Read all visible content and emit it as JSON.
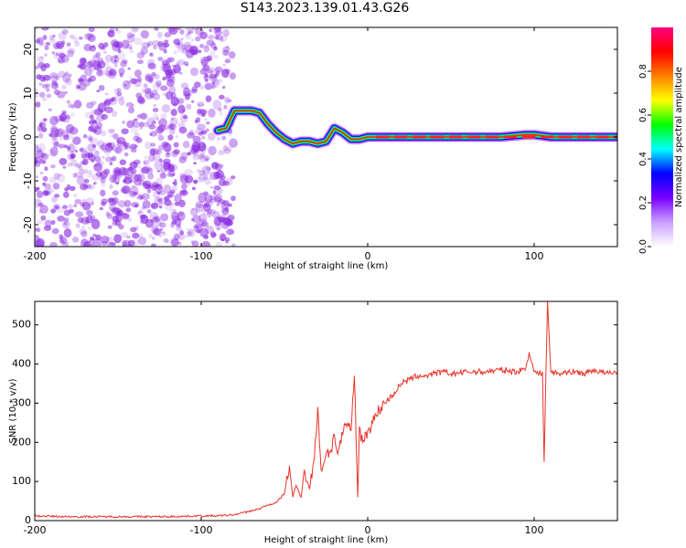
{
  "title": "S143.2023.139.01.43.G26",
  "chart_data": [
    {
      "type": "heatmap",
      "xlabel": "Height of straight line (km)",
      "ylabel": "Frequency (Hz)",
      "xlim": [
        -200,
        150
      ],
      "ylim": [
        -25,
        25
      ],
      "xticks": [
        -200,
        -100,
        0,
        100
      ],
      "yticks": [
        -20,
        -10,
        0,
        10,
        20
      ],
      "colorbar": {
        "label": "Normalized spectral amplitude",
        "range": [
          0,
          1
        ],
        "ticks": [
          0.0,
          0.2,
          0.4,
          0.6,
          0.8
        ],
        "tick_labels": [
          "0.0",
          "0.2",
          "0.4",
          "0.6",
          "0.8"
        ],
        "colors": [
          "#ffffff",
          "#c9a0ff",
          "#7a00ff",
          "#0000ff",
          "#00ffff",
          "#00ff00",
          "#ffff00",
          "#ff8000",
          "#ff0000",
          "#ff007f"
        ]
      },
      "noise_region": {
        "x_range": [
          -200,
          -85
        ],
        "color": "#8a2be2"
      },
      "ridge": [
        {
          "x": -90,
          "y": 1.5
        },
        {
          "x": -85,
          "y": 2
        },
        {
          "x": -80,
          "y": 6
        },
        {
          "x": -75,
          "y": 6
        },
        {
          "x": -70,
          "y": 6
        },
        {
          "x": -65,
          "y": 5.5
        },
        {
          "x": -60,
          "y": 3
        },
        {
          "x": -55,
          "y": 1
        },
        {
          "x": -50,
          "y": -0.5
        },
        {
          "x": -45,
          "y": -1.5
        },
        {
          "x": -40,
          "y": -1
        },
        {
          "x": -35,
          "y": -1
        },
        {
          "x": -30,
          "y": -1.5
        },
        {
          "x": -25,
          "y": -1
        },
        {
          "x": -20,
          "y": 2
        },
        {
          "x": -15,
          "y": 1
        },
        {
          "x": -10,
          "y": -0.5
        },
        {
          "x": -5,
          "y": -0.5
        },
        {
          "x": 0,
          "y": 0
        },
        {
          "x": 10,
          "y": 0
        },
        {
          "x": 30,
          "y": 0
        },
        {
          "x": 60,
          "y": 0
        },
        {
          "x": 80,
          "y": 0
        },
        {
          "x": 95,
          "y": 0.5
        },
        {
          "x": 100,
          "y": 0.5
        },
        {
          "x": 110,
          "y": 0
        },
        {
          "x": 150,
          "y": 0
        }
      ]
    },
    {
      "type": "line",
      "xlabel": "Height of straight line (km)",
      "ylabel": "SNR (10 * v/v)",
      "xlim": [
        -200,
        150
      ],
      "ylim": [
        0,
        560
      ],
      "xticks": [
        -200,
        -100,
        0,
        100
      ],
      "yticks": [
        0,
        100,
        200,
        300,
        400,
        500
      ],
      "color": "#e8332a",
      "series": [
        {
          "x": [
            -200,
            -180,
            -160,
            -140,
            -120,
            -100,
            -90,
            -80,
            -75,
            -70,
            -65,
            -60,
            -55,
            -50,
            -47,
            -45,
            -43,
            -40,
            -38,
            -35,
            -32,
            -30,
            -28,
            -25,
            -22,
            -20,
            -18,
            -15,
            -12,
            -10,
            -8,
            -6,
            -5,
            -3,
            0,
            3,
            5,
            8,
            10,
            15,
            20,
            25,
            30,
            35,
            40,
            45,
            50,
            60,
            70,
            80,
            90,
            95,
            97,
            100,
            103,
            105,
            106,
            108,
            110,
            115,
            120,
            125,
            130,
            135,
            140,
            145,
            150
          ],
          "y": [
            12,
            10,
            10,
            10,
            10,
            12,
            12,
            15,
            20,
            25,
            30,
            40,
            45,
            70,
            140,
            60,
            90,
            60,
            130,
            80,
            160,
            290,
            130,
            170,
            180,
            220,
            170,
            220,
            250,
            230,
            370,
            60,
            240,
            200,
            230,
            250,
            270,
            290,
            300,
            320,
            350,
            360,
            370,
            370,
            375,
            380,
            375,
            380,
            380,
            385,
            380,
            390,
            430,
            380,
            375,
            380,
            150,
            560,
            380,
            375,
            380,
            380,
            375,
            385,
            380,
            375,
            380
          ]
        }
      ]
    }
  ]
}
